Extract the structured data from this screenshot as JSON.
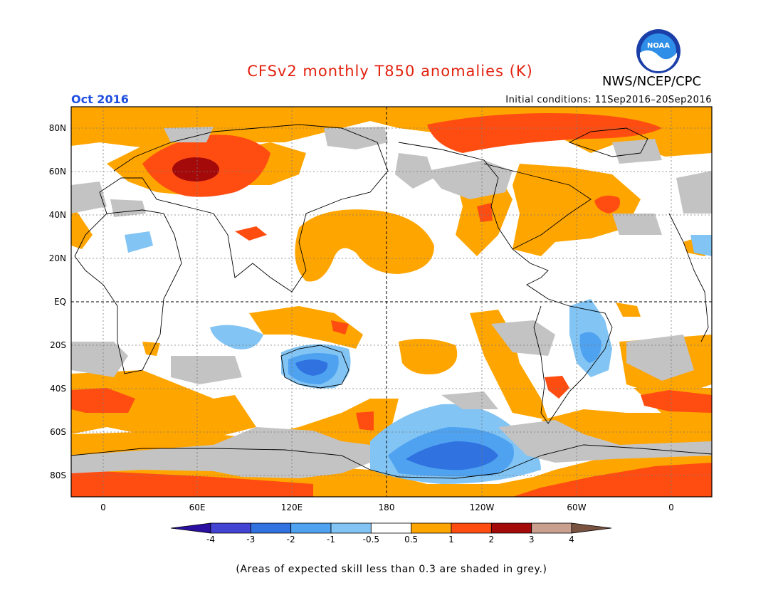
{
  "title": "CFSv2 monthly T850 anomalies (K)",
  "agency": "NWS/NCEP/CPC",
  "logo_text": "NOAA",
  "valid_month": "Oct 2016",
  "initial_conditions": "Initial conditions: 11Sep2016–20Sep2016",
  "lat_labels": [
    "80N",
    "60N",
    "40N",
    "20N",
    "EQ",
    "20S",
    "40S",
    "60S",
    "80S"
  ],
  "lon_labels": [
    "0",
    "60E",
    "120E",
    "180",
    "120W",
    "60W",
    "0"
  ],
  "colorbar": {
    "tick_labels": [
      "-4",
      "-3",
      "-2",
      "-1",
      "-0.5",
      "0.5",
      "1",
      "2",
      "3",
      "4"
    ],
    "colors": [
      "#2a0fa0",
      "#4444d4",
      "#2f72e0",
      "#4ea2f0",
      "#82c4f4",
      "#ffffff",
      "#ffa500",
      "#ff4d12",
      "#a40a0a",
      "#c9a08f",
      "#7a5240"
    ]
  },
  "colors": {
    "grey_skill": "#c3c3c3",
    "ocean_land_bg": "#ffffff",
    "title_red": "#e3210f",
    "month_blue": "#1f4fe0"
  },
  "footnote": "(Areas of expected skill less than 0.3 are shaded in grey.)"
}
